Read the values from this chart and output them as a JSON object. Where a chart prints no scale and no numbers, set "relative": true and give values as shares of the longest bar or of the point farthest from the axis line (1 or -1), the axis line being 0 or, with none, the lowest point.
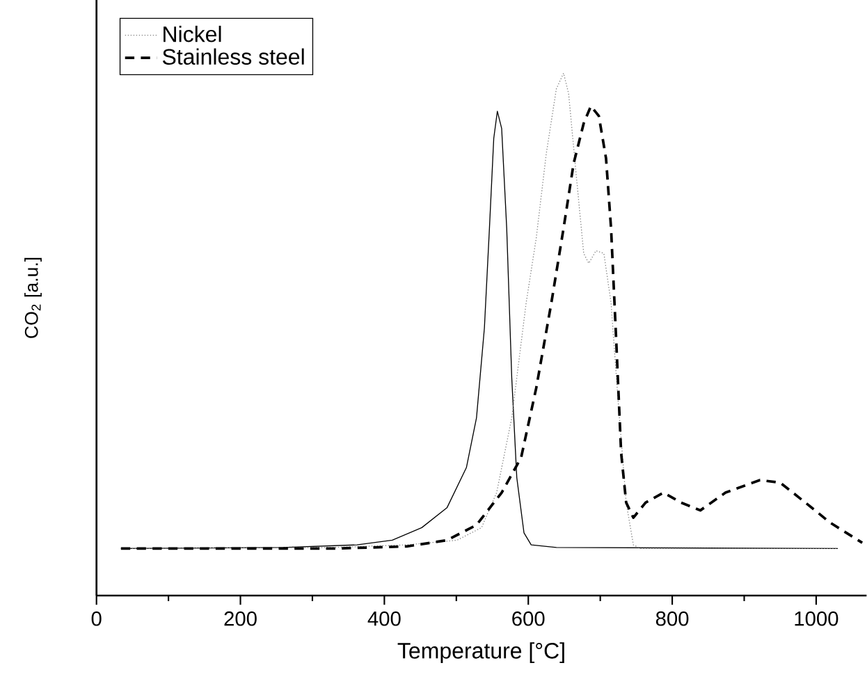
{
  "chart_data": {
    "type": "line",
    "xlabel": "Temperature [°C]",
    "ylabel": "CO$_{2}$ [a.u.]",
    "relative": true,
    "legend": "top left",
    "xlim": [
      0,
      1070
    ],
    "xticks": [
      0,
      200,
      400,
      600,
      800,
      1000
    ],
    "series": [
      {
        "color": "#000000",
        "line_style": "solid",
        "x": [
          34,
          259,
          362,
          411,
          452,
          487,
          514,
          528,
          539,
          546,
          552,
          557,
          563,
          570,
          577,
          584,
          594,
          604,
          639,
          1030
        ],
        "values": [
          0.09,
          0.092,
          0.097,
          0.106,
          0.13,
          0.168,
          0.245,
          0.34,
          0.512,
          0.703,
          0.875,
          0.927,
          0.894,
          0.703,
          0.417,
          0.226,
          0.12,
          0.097,
          0.092,
          0.09
        ]
      },
      {
        "name": "Nickel",
        "color": "#808080",
        "line_style": "dotted",
        "x": [
          34,
          328,
          431,
          501,
          535,
          556,
          577,
          597,
          611,
          625,
          639,
          649,
          656,
          667,
          677,
          684,
          694,
          705,
          715,
          725,
          736,
          746,
          756,
          1030
        ],
        "values": [
          0.09,
          0.092,
          0.097,
          0.106,
          0.13,
          0.197,
          0.34,
          0.56,
          0.684,
          0.846,
          0.97,
          1.0,
          0.961,
          0.799,
          0.655,
          0.636,
          0.66,
          0.655,
          0.56,
          0.369,
          0.178,
          0.097,
          0.09,
          0.09
        ]
      },
      {
        "name": "Stainless steel",
        "color": "#000000",
        "line_style": "dashed",
        "x": [
          34,
          328,
          431,
          487,
          528,
          563,
          590,
          611,
          632,
          649,
          663,
          677,
          687,
          698,
          708,
          715,
          722,
          729,
          736,
          746,
          763,
          788,
          812,
          839,
          874,
          922,
          950,
          985,
          1019,
          1064
        ],
        "values": [
          0.09,
          0.09,
          0.094,
          0.106,
          0.135,
          0.197,
          0.264,
          0.397,
          0.56,
          0.703,
          0.827,
          0.904,
          0.937,
          0.918,
          0.837,
          0.703,
          0.493,
          0.273,
          0.178,
          0.149,
          0.178,
          0.197,
          0.178,
          0.163,
          0.197,
          0.221,
          0.216,
          0.178,
          0.14,
          0.101
        ]
      }
    ]
  }
}
